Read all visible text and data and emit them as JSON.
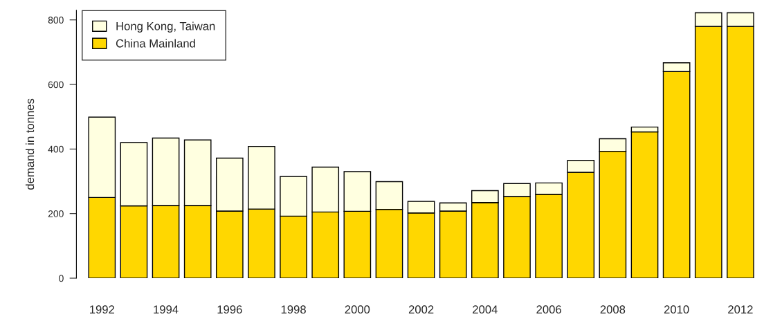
{
  "chart_data": {
    "type": "bar",
    "stacked": true,
    "ylabel": "demand in tonnes",
    "categories": [
      "1992",
      null,
      "1994",
      null,
      "1996",
      null,
      "1998",
      null,
      "2000",
      null,
      "2002",
      null,
      "2004",
      null,
      "2006",
      null,
      "2008",
      null,
      "2010",
      null,
      "2012"
    ],
    "series": [
      {
        "name": "China Mainland",
        "color": "#ffd700",
        "values": [
          250,
          224,
          225,
          225,
          208,
          214,
          192,
          205,
          207,
          213,
          202,
          208,
          234,
          253,
          260,
          328,
          393,
          453,
          640,
          780,
          780
        ]
      },
      {
        "name": "Hong Kong, Taiwan",
        "color": "#ffffe0",
        "values": [
          249,
          196,
          209,
          203,
          164,
          194,
          123,
          139,
          123,
          86,
          36,
          25,
          37,
          40,
          35,
          37,
          39,
          15,
          27,
          42,
          42
        ]
      }
    ],
    "ylim": [
      0,
      830
    ],
    "yticks": [
      0,
      200,
      400,
      600,
      800
    ],
    "grid": false,
    "legend": "top left"
  }
}
